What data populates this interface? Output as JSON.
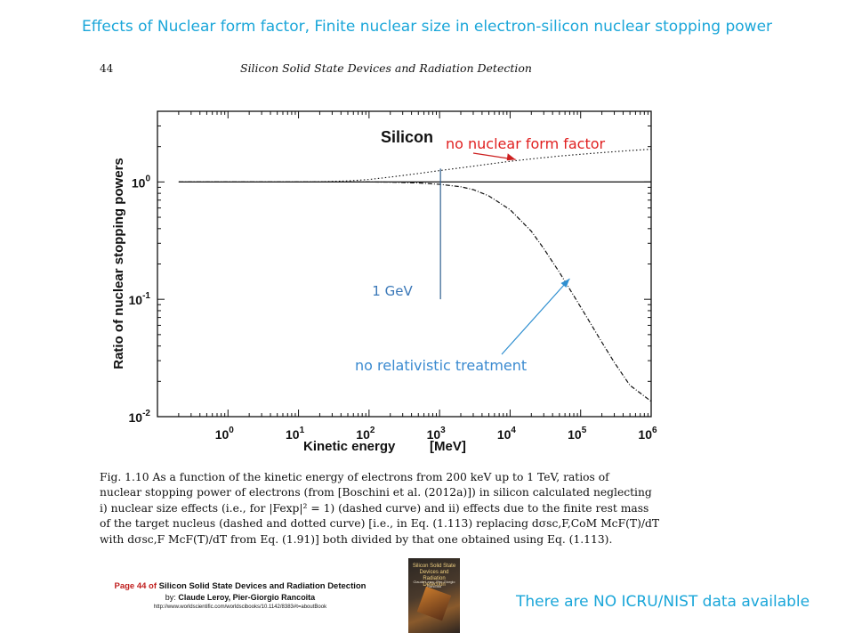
{
  "slide": {
    "title": "Effects of Nuclear form factor, Finite nuclear size in electron-silicon nuclear stopping power",
    "note": "There are NO ICRU/NIST data available",
    "title_color": "#1aa6d9"
  },
  "page_header": {
    "page_number": "44",
    "running_head": "Silicon Solid State Devices and Radiation Detection"
  },
  "chart_data": {
    "type": "line",
    "panel_label": "Silicon",
    "xlabel": "Kinetic energy",
    "xunit": "[MeV]",
    "ylabel": "Ratio of nuclear stopping powers",
    "x_scale": "log",
    "y_scale": "log",
    "xlim": [
      0.1,
      1000000
    ],
    "ylim": [
      0.01,
      4
    ],
    "x_ticks": [
      {
        "base": "10",
        "exp": "0",
        "value": 1
      },
      {
        "base": "10",
        "exp": "1",
        "value": 10
      },
      {
        "base": "10",
        "exp": "2",
        "value": 100
      },
      {
        "base": "10",
        "exp": "3",
        "value": 1000
      },
      {
        "base": "10",
        "exp": "4",
        "value": 10000
      },
      {
        "base": "10",
        "exp": "5",
        "value": 100000
      },
      {
        "base": "10",
        "exp": "6",
        "value": 1000000
      }
    ],
    "y_ticks": [
      {
        "base": "10",
        "exp": "0",
        "value": 1
      },
      {
        "base": "10",
        "exp": "-1",
        "value": 0.1
      },
      {
        "base": "10",
        "exp": "-2",
        "value": 0.01
      }
    ],
    "series": [
      {
        "style": "dotted",
        "x": [
          0.2,
          10,
          20,
          50,
          100,
          200,
          500,
          1000,
          2000,
          5000,
          10000,
          20000,
          50000,
          100000,
          200000,
          500000,
          1000000
        ],
        "y": [
          1.0,
          1.0,
          1.003,
          1.02,
          1.05,
          1.1,
          1.18,
          1.25,
          1.32,
          1.42,
          1.5,
          1.57,
          1.66,
          1.72,
          1.78,
          1.85,
          1.9
        ]
      },
      {
        "style": "dashed",
        "x": [
          0.2,
          100,
          200,
          500,
          1000,
          2000,
          3000,
          5000,
          10000,
          20000,
          30000,
          50000,
          100000,
          200000,
          300000,
          500000,
          1000000
        ],
        "y": [
          1.0,
          1.0,
          0.995,
          0.98,
          0.955,
          0.91,
          0.86,
          0.76,
          0.58,
          0.38,
          0.27,
          0.17,
          0.086,
          0.043,
          0.029,
          0.0185,
          0.0135
        ]
      },
      {
        "style": "solid",
        "x": [
          0.2,
          1000000
        ],
        "y": [
          1.0,
          1.0
        ]
      }
    ],
    "marker": {
      "x": 1000,
      "ymin": 0.1,
      "ymax": 1.3,
      "label": "1 GeV",
      "color": "#2e5f8f"
    },
    "annotations": [
      {
        "text": "no nuclear form factor",
        "color": "#e02020",
        "arrow_to_x": 12000,
        "arrow_to_y": 1.55
      },
      {
        "text": "no relativistic treatment",
        "color": "#3a8ad0",
        "arrow_to_x": 70000,
        "arrow_to_y": 0.15
      }
    ]
  },
  "caption": {
    "lines": [
      "Fig. 1.10   As a function of the kinetic energy of electrons from 200 keV up to 1 TeV, ratios of",
      "nuclear stopping power of electrons (from [Boschini et al. (2012a)]) in silicon calculated neglecting",
      "i) nuclear size effects (i.e., for |Fexp|² = 1) (dashed curve) and ii) effects due to the finite rest mass",
      "of the target nucleus (dashed and dotted curve) [i.e., in Eq. (1.113) replacing dσsc,F,CoM McF(T)/dT",
      "with dσsc,F McF(T)/dT from Eq. (1.91)] both divided by that one obtained using Eq. (1.113)."
    ]
  },
  "reference": {
    "page_prefix": "Page 44 of",
    "book_title": "Silicon Solid State Devices and Radiation Detection",
    "by_prefix": "by:",
    "authors": "Claude Leroy, Pier-Giorgio Rancoita",
    "url": "http://www.worldscientific.com/worldscibooks/10.1142/8383#t=aboutBook",
    "page_color": "#c0201f"
  },
  "book_cover": {
    "title": "Silicon Solid State Devices and Radiation Detection",
    "authors": "Claude Leroy, Pier-Giorgio Rancoita"
  }
}
